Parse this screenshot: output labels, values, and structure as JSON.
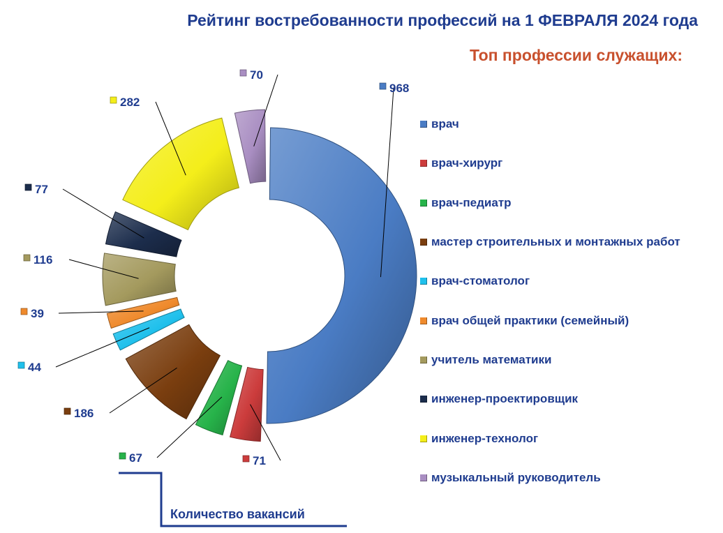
{
  "title": "Рейтинг востребованности профессий на 1 ФЕВРАЛЯ 2024 года",
  "subtitle": "Топ профессии служащих:",
  "footer_label": "Количество вакансий",
  "chart_data": {
    "type": "pie",
    "style": "exploded-donut",
    "categories": [
      "врач",
      "врач-хирург",
      "врач-педиатр",
      "мастер строительных и монтажных работ",
      "врач-стоматолог",
      "врач общей практики (семейный)",
      "учитель математики",
      "инженер-проектировщик",
      "инженер-технолог",
      "музыкальный руководитель"
    ],
    "values": [
      968,
      71,
      67,
      186,
      44,
      39,
      116,
      77,
      282,
      70
    ],
    "colors": [
      "#4a7cc4",
      "#cc3c3c",
      "#27b34a",
      "#7a3e0f",
      "#1fc0ec",
      "#ef8a2c",
      "#a49a5e",
      "#1c2d4c",
      "#f4ee1a",
      "#a98ec2"
    ],
    "legend_position": "right",
    "title": "Рейтинг востребованности профессий на 1 ФЕВРАЛЯ 2024 года"
  }
}
